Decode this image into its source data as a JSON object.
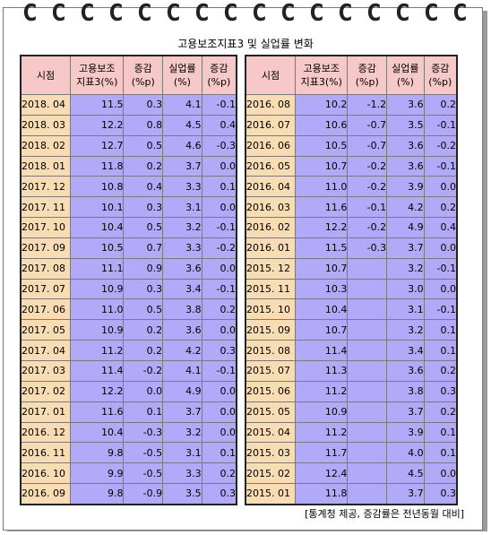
{
  "title": "고용보조지표3 및 실업률 변화",
  "headers": [
    "시점",
    "고용보조\n지표3(%)",
    "증감\n(%p)",
    "실업률\n(%)",
    "증감\n(%p)"
  ],
  "left_rows": [
    [
      "2018. 04",
      "11.5",
      "0.3",
      "4.1",
      "-0.1"
    ],
    [
      "2018. 03",
      "12.2",
      "0.8",
      "4.5",
      "0.4"
    ],
    [
      "2018. 02",
      "12.7",
      "0.5",
      "4.6",
      "-0.3"
    ],
    [
      "2018. 01",
      "11.8",
      "0.2",
      "3.7",
      "0.0"
    ],
    [
      "2017. 12",
      "10.8",
      "0.4",
      "3.3",
      "0.1"
    ],
    [
      "2017. 11",
      "10.1",
      "0.3",
      "3.1",
      "0.0"
    ],
    [
      "2017. 10",
      "10.4",
      "0.5",
      "3.2",
      "-0.1"
    ],
    [
      "2017. 09",
      "10.5",
      "0.7",
      "3.3",
      "-0.2"
    ],
    [
      "2017. 08",
      "11.1",
      "0.9",
      "3.6",
      "0.0"
    ],
    [
      "2017. 07",
      "10.9",
      "0.3",
      "3.4",
      "-0.1"
    ],
    [
      "2017. 06",
      "11.0",
      "0.5",
      "3.8",
      "0.2"
    ],
    [
      "2017. 05",
      "10.9",
      "0.2",
      "3.6",
      "0.0"
    ],
    [
      "2017. 04",
      "11.2",
      "0.2",
      "4.2",
      "0.3"
    ],
    [
      "2017. 03",
      "11.4",
      "-0.2",
      "4.1",
      "-0.1"
    ],
    [
      "2017. 02",
      "12.2",
      "0.0",
      "4.9",
      "0.0"
    ],
    [
      "2017. 01",
      "11.6",
      "0.1",
      "3.7",
      "0.0"
    ],
    [
      "2016. 12",
      "10.4",
      "-0.3",
      "3.2",
      "0.0"
    ],
    [
      "2016. 11",
      "9.8",
      "-0.5",
      "3.1",
      "0.1"
    ],
    [
      "2016. 10",
      "9.9",
      "-0.5",
      "3.3",
      "0.2"
    ],
    [
      "2016. 09",
      "9.8",
      "-0.9",
      "3.5",
      "0.3"
    ]
  ],
  "right_rows": [
    [
      "2016. 08",
      "10.2",
      "-1.2",
      "3.6",
      "0.2"
    ],
    [
      "2016. 07",
      "10.6",
      "-0.7",
      "3.5",
      "-0.1"
    ],
    [
      "2016. 06",
      "10.5",
      "-0.7",
      "3.6",
      "-0.2"
    ],
    [
      "2016. 05",
      "10.7",
      "-0.2",
      "3.6",
      "-0.1"
    ],
    [
      "2016. 04",
      "11.0",
      "-0.2",
      "3.9",
      "0.0"
    ],
    [
      "2016. 03",
      "11.6",
      "-0.1",
      "4.2",
      "0.2"
    ],
    [
      "2016. 02",
      "12.2",
      "-0.2",
      "4.9",
      "0.4"
    ],
    [
      "2016. 01",
      "11.5",
      "-0.3",
      "3.7",
      "0.0"
    ],
    [
      "2015. 12",
      "10.7",
      "",
      "3.2",
      "-0.1"
    ],
    [
      "2015. 11",
      "10.3",
      "",
      "3.0",
      "0.0"
    ],
    [
      "2015. 10",
      "10.4",
      "",
      "3.1",
      "-0.1"
    ],
    [
      "2015. 09",
      "10.7",
      "",
      "3.2",
      "0.1"
    ],
    [
      "2015. 08",
      "11.4",
      "",
      "3.4",
      "0.1"
    ],
    [
      "2015. 07",
      "11.3",
      "",
      "3.6",
      "0.2"
    ],
    [
      "2015. 06",
      "11.2",
      "",
      "3.8",
      "0.3"
    ],
    [
      "2015. 05",
      "10.9",
      "",
      "3.7",
      "0.2"
    ],
    [
      "2015. 04",
      "11.2",
      "",
      "3.9",
      "0.1"
    ],
    [
      "2015. 03",
      "11.7",
      "",
      "4.0",
      "0.1"
    ],
    [
      "2015. 02",
      "12.4",
      "",
      "4.5",
      "0.0"
    ],
    [
      "2015. 01",
      "11.8",
      "",
      "3.7",
      "0.3"
    ]
  ],
  "source_note": "[통계청 제공, 증감률은 전년동월 대비]",
  "ring_glyph": "C",
  "colors": {
    "header": "#f6c8c8",
    "date": "#f8dcb4",
    "value": "#b2a9f8"
  }
}
